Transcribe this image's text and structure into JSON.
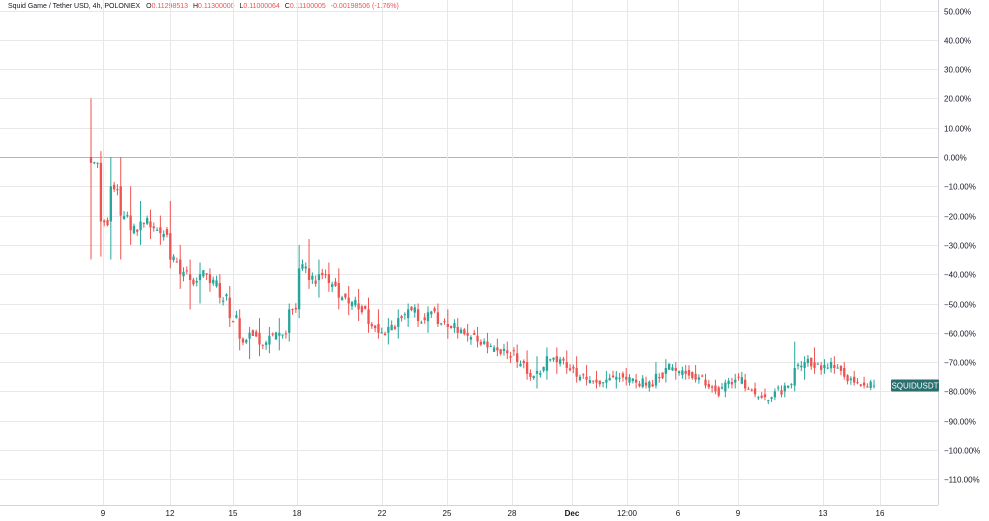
{
  "legend": {
    "title": "Squid Game / Tether USD, 4h, POLONIEX",
    "o_label": "O",
    "o_value": "0.11298513",
    "h_label": "H",
    "h_value": "0.11300000",
    "l_label": "L",
    "l_value": "0.11000064",
    "c_label": "C",
    "c_value": "0.11100005",
    "change": "-0.00198506 (-1.76%)"
  },
  "colors": {
    "up": "#26a69a",
    "down": "#ef5350",
    "grid": "#e8e8e8",
    "zero": "#b2b5be",
    "tag_bg": "#2b6e6e"
  },
  "chart_data": {
    "type": "candlestick",
    "title": "Squid Game / Tether USD, 4h, POLONIEX",
    "y_unit": "%",
    "ylim": [
      -115,
      52
    ],
    "y_ticks": [
      50,
      40,
      30,
      20,
      10,
      0,
      -10,
      -20,
      -30,
      -40,
      -50,
      -60,
      -70,
      -80,
      -90,
      -100,
      -110
    ],
    "y_tick_labels": [
      "50.00%",
      "40.00%",
      "30.00%",
      "20.00%",
      "10.00%",
      "0.00%",
      "−10.00%",
      "−20.00%",
      "−30.00%",
      "−40.00%",
      "−50.00%",
      "−60.00%",
      "−70.00%",
      "−80.00%",
      "−90.00%",
      "−100.00%",
      "−110.00%"
    ],
    "x_ticks": [
      {
        "label": "9",
        "bold": false
      },
      {
        "label": "12",
        "bold": false
      },
      {
        "label": "15",
        "bold": false
      },
      {
        "label": "18",
        "bold": false
      },
      {
        "label": "22",
        "bold": false
      },
      {
        "label": "25",
        "bold": false
      },
      {
        "label": "28",
        "bold": false
      },
      {
        "label": "Dec",
        "bold": true
      },
      {
        "label": "12:00",
        "bold": false
      },
      {
        "label": "6",
        "bold": false
      },
      {
        "label": "9",
        "bold": false
      },
      {
        "label": "13",
        "bold": false
      },
      {
        "label": "16",
        "bold": false
      }
    ],
    "last_value_label": "SQUIDUSDT",
    "last_value": -78,
    "anchors": [
      [
        0,
        0,
        20,
        -35,
        -2
      ],
      [
        1,
        -2,
        2,
        -34,
        -22
      ],
      [
        2,
        -22,
        0,
        -35,
        -10
      ],
      [
        3,
        -10,
        0,
        -35,
        -20
      ],
      [
        4,
        -20,
        -10,
        -30,
        -25
      ],
      [
        5,
        -25,
        -15,
        -30,
        -22
      ],
      [
        6,
        -22,
        -18,
        -28,
        -24
      ],
      [
        7,
        -24,
        -20,
        -30,
        -26
      ],
      [
        8,
        -26,
        -15,
        -38,
        -35
      ],
      [
        9,
        -35,
        -30,
        -45,
        -40
      ],
      [
        10,
        -40,
        -35,
        -52,
        -42
      ],
      [
        11,
        -42,
        -36,
        -50,
        -40
      ],
      [
        12,
        -40,
        -38,
        -46,
        -43
      ],
      [
        13,
        -43,
        -40,
        -50,
        -48
      ],
      [
        14,
        -48,
        -44,
        -58,
        -55
      ],
      [
        15,
        -55,
        -52,
        -66,
        -62
      ],
      [
        16,
        -62,
        -58,
        -69,
        -60
      ],
      [
        17,
        -60,
        -55,
        -68,
        -64
      ],
      [
        18,
        -64,
        -58,
        -67,
        -61
      ],
      [
        19,
        -61,
        -55,
        -66,
        -60
      ],
      [
        20,
        -60,
        -50,
        -63,
        -52
      ],
      [
        21,
        -52,
        -30,
        -55,
        -38
      ],
      [
        22,
        -38,
        -28,
        -45,
        -42
      ],
      [
        23,
        -42,
        -35,
        -48,
        -40
      ],
      [
        24,
        -40,
        -36,
        -46,
        -43
      ],
      [
        25,
        -43,
        -38,
        -52,
        -48
      ],
      [
        26,
        -48,
        -44,
        -54,
        -50
      ],
      [
        27,
        -50,
        -45,
        -56,
        -52
      ],
      [
        28,
        -52,
        -48,
        -60,
        -57
      ],
      [
        29,
        -57,
        -52,
        -62,
        -60
      ],
      [
        30,
        -60,
        -55,
        -64,
        -58
      ],
      [
        31,
        -58,
        -52,
        -62,
        -55
      ],
      [
        32,
        -55,
        -50,
        -58,
        -52
      ],
      [
        33,
        -52,
        -50,
        -58,
        -56
      ],
      [
        34,
        -56,
        -51,
        -60,
        -53
      ],
      [
        35,
        -53,
        -50,
        -58,
        -57
      ],
      [
        36,
        -57,
        -52,
        -62,
        -58
      ],
      [
        37,
        -58,
        -55,
        -62,
        -60
      ],
      [
        38,
        -60,
        -57,
        -63,
        -61
      ],
      [
        39,
        -61,
        -58,
        -65,
        -63
      ],
      [
        40,
        -63,
        -60,
        -67,
        -65
      ],
      [
        41,
        -65,
        -62,
        -68,
        -66
      ],
      [
        42,
        -66,
        -63,
        -69,
        -67
      ],
      [
        43,
        -67,
        -64,
        -72,
        -70
      ],
      [
        44,
        -70,
        -66,
        -76,
        -74
      ],
      [
        45,
        -74,
        -68,
        -79,
        -73
      ],
      [
        46,
        -73,
        -65,
        -76,
        -68
      ],
      [
        47,
        -68,
        -65,
        -74,
        -70
      ],
      [
        48,
        -70,
        -66,
        -74,
        -72
      ],
      [
        49,
        -72,
        -68,
        -77,
        -75
      ],
      [
        50,
        -75,
        -71,
        -78,
        -76
      ],
      [
        51,
        -76,
        -73,
        -79,
        -77
      ],
      [
        52,
        -77,
        -73,
        -79,
        -76
      ],
      [
        53,
        -76,
        -73,
        -79,
        -75
      ],
      [
        54,
        -75,
        -72,
        -78,
        -76
      ],
      [
        55,
        -76,
        -74,
        -79,
        -77
      ],
      [
        56,
        -77,
        -75,
        -79,
        -78
      ],
      [
        57,
        -78,
        -70,
        -79,
        -74
      ],
      [
        58,
        -74,
        -69,
        -77,
        -72
      ],
      [
        59,
        -72,
        -70,
        -76,
        -73
      ],
      [
        60,
        -73,
        -71,
        -76,
        -74
      ],
      [
        61,
        -74,
        -71,
        -77,
        -76
      ],
      [
        62,
        -76,
        -74,
        -79,
        -78
      ],
      [
        63,
        -78,
        -76,
        -81,
        -80
      ],
      [
        64,
        -80,
        -76,
        -82,
        -77
      ],
      [
        65,
        -77,
        -74,
        -79,
        -76
      ],
      [
        66,
        -76,
        -74,
        -80,
        -79
      ],
      [
        67,
        -79,
        -77,
        -82,
        -81
      ],
      [
        68,
        -81,
        -79,
        -83,
        -82
      ],
      [
        69,
        -82,
        -79,
        -83,
        -80
      ],
      [
        70,
        -80,
        -77,
        -82,
        -78
      ],
      [
        71,
        -78,
        -63,
        -80,
        -72
      ],
      [
        72,
        -72,
        -68,
        -76,
        -70
      ],
      [
        73,
        -70,
        -65,
        -74,
        -72
      ],
      [
        74,
        -72,
        -69,
        -74,
        -71
      ],
      [
        75,
        -71,
        -68,
        -74,
        -72
      ],
      [
        76,
        -72,
        -70,
        -76,
        -75
      ],
      [
        77,
        -75,
        -73,
        -78,
        -77
      ],
      [
        78,
        -77,
        -75,
        -79,
        -78
      ],
      [
        79,
        -78,
        -76,
        -79,
        -78
      ]
    ]
  }
}
